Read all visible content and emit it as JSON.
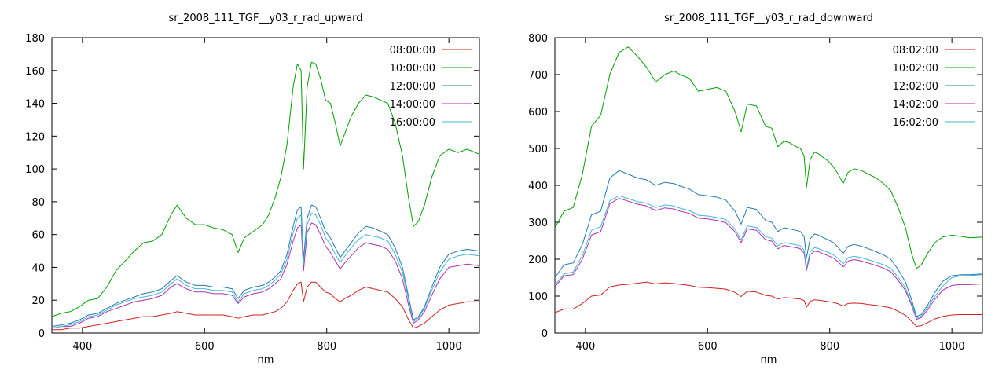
{
  "page": {
    "background": "#ffffff"
  },
  "chart_data": [
    {
      "id": "upward",
      "type": "line",
      "title": "sr_2008_111_TGF__y03_r_rad_upward",
      "xlabel": "nm",
      "ylabel": "",
      "xlim": [
        350,
        1050
      ],
      "ylim": [
        0,
        180
      ],
      "xticks": [
        400,
        600,
        800,
        1000
      ],
      "ytick_step": 20,
      "grid": false,
      "legend_position": "top-right-inside",
      "x": [
        350,
        365,
        380,
        395,
        410,
        425,
        440,
        455,
        470,
        485,
        500,
        515,
        530,
        545,
        555,
        570,
        585,
        600,
        615,
        630,
        645,
        655,
        665,
        680,
        695,
        705,
        715,
        725,
        735,
        745,
        752,
        758,
        762,
        768,
        775,
        782,
        790,
        798,
        806,
        814,
        822,
        830,
        840,
        852,
        864,
        876,
        888,
        900,
        912,
        924,
        934,
        942,
        950,
        960,
        972,
        985,
        1000,
        1015,
        1030,
        1050
      ],
      "series": [
        {
          "name": "08:00:00",
          "color": "#cc2222",
          "values": [
            2,
            2,
            3,
            3,
            4,
            5,
            6,
            7,
            8,
            9,
            10,
            10,
            11,
            12,
            13,
            12,
            11,
            11,
            11,
            11,
            10,
            9,
            10,
            11,
            11,
            12,
            13,
            15,
            19,
            26,
            30,
            31,
            19,
            28,
            31,
            31,
            28,
            25,
            24,
            21,
            19,
            21,
            23,
            26,
            28,
            27,
            26,
            25,
            21,
            16,
            8,
            3,
            4,
            6,
            10,
            14,
            17,
            18,
            19,
            19
          ]
        },
        {
          "name": "10:00:00",
          "color": "#00a000",
          "values": [
            10,
            12,
            13,
            16,
            20,
            21,
            28,
            38,
            44,
            50,
            55,
            56,
            60,
            72,
            78,
            70,
            66,
            66,
            64,
            63,
            60,
            49,
            58,
            62,
            66,
            72,
            82,
            95,
            115,
            150,
            164,
            160,
            100,
            150,
            165,
            164,
            155,
            142,
            140,
            128,
            114,
            122,
            132,
            140,
            145,
            144,
            142,
            140,
            128,
            108,
            82,
            65,
            68,
            78,
            95,
            108,
            112,
            110,
            112,
            109
          ]
        },
        {
          "name": "12:00:00",
          "color": "#2878b0",
          "values": [
            4,
            5,
            6,
            8,
            11,
            12,
            15,
            18,
            20,
            22,
            24,
            25,
            27,
            32,
            35,
            31,
            29,
            29,
            28,
            28,
            27,
            21,
            26,
            28,
            29,
            31,
            34,
            38,
            48,
            65,
            75,
            77,
            45,
            70,
            78,
            77,
            70,
            62,
            58,
            52,
            46,
            50,
            55,
            61,
            65,
            64,
            62,
            60,
            52,
            40,
            22,
            8,
            10,
            16,
            28,
            40,
            48,
            50,
            51,
            50
          ]
        },
        {
          "name": "14:00:00",
          "color": "#b030b0",
          "values": [
            3,
            4,
            4,
            6,
            9,
            10,
            13,
            15,
            17,
            19,
            20,
            21,
            23,
            28,
            30,
            27,
            25,
            25,
            24,
            24,
            23,
            18,
            22,
            24,
            25,
            27,
            30,
            33,
            42,
            56,
            64,
            66,
            38,
            61,
            67,
            66,
            60,
            53,
            49,
            44,
            39,
            43,
            47,
            52,
            55,
            54,
            53,
            51,
            44,
            33,
            17,
            6,
            8,
            13,
            23,
            33,
            40,
            41,
            42,
            41
          ]
        },
        {
          "name": "16:00:00",
          "color": "#40b8d8",
          "values": [
            3,
            4,
            5,
            7,
            10,
            11,
            14,
            17,
            19,
            21,
            22,
            23,
            25,
            30,
            33,
            29,
            27,
            27,
            26,
            26,
            25,
            19,
            24,
            26,
            27,
            29,
            32,
            36,
            45,
            61,
            70,
            72,
            42,
            66,
            73,
            72,
            66,
            58,
            54,
            48,
            43,
            47,
            52,
            57,
            60,
            59,
            58,
            56,
            48,
            37,
            20,
            7,
            9,
            15,
            26,
            37,
            45,
            47,
            48,
            47
          ]
        }
      ]
    },
    {
      "id": "downward",
      "type": "line",
      "title": "sr_2008_111_TGF__y03_r_rad_downward",
      "xlabel": "nm",
      "ylabel": "",
      "xlim": [
        350,
        1050
      ],
      "ylim": [
        0,
        800
      ],
      "xticks": [
        400,
        600,
        800,
        1000
      ],
      "ytick_step": 100,
      "grid": false,
      "legend_position": "top-right-inside",
      "x": [
        350,
        365,
        380,
        395,
        410,
        425,
        440,
        455,
        470,
        485,
        500,
        515,
        530,
        545,
        555,
        570,
        585,
        600,
        615,
        630,
        645,
        655,
        665,
        680,
        695,
        705,
        715,
        725,
        735,
        745,
        752,
        758,
        762,
        768,
        775,
        782,
        790,
        798,
        806,
        814,
        822,
        830,
        840,
        852,
        864,
        876,
        888,
        900,
        912,
        924,
        934,
        942,
        950,
        960,
        972,
        985,
        1000,
        1015,
        1030,
        1050
      ],
      "series": [
        {
          "name": "08:02:00",
          "color": "#cc2222",
          "values": [
            55,
            65,
            65,
            80,
            100,
            103,
            125,
            130,
            132,
            135,
            138,
            133,
            136,
            134,
            132,
            129,
            124,
            123,
            121,
            119,
            110,
            99,
            113,
            111,
            102,
            100,
            92,
            96,
            95,
            93,
            92,
            88,
            70,
            86,
            90,
            89,
            87,
            85,
            83,
            79,
            73,
            80,
            81,
            80,
            77,
            75,
            72,
            68,
            59,
            48,
            32,
            18,
            20,
            28,
            38,
            45,
            49,
            50,
            50,
            50
          ]
        },
        {
          "name": "10:02:00",
          "color": "#00a000",
          "values": [
            285,
            330,
            340,
            430,
            560,
            590,
            700,
            760,
            775,
            750,
            720,
            680,
            700,
            710,
            700,
            690,
            655,
            660,
            665,
            655,
            600,
            545,
            620,
            615,
            560,
            555,
            505,
            520,
            515,
            505,
            500,
            480,
            395,
            470,
            490,
            485,
            475,
            465,
            450,
            430,
            405,
            435,
            445,
            440,
            430,
            420,
            405,
            385,
            340,
            285,
            215,
            175,
            185,
            215,
            245,
            260,
            265,
            262,
            258,
            260
          ]
        },
        {
          "name": "12:02:00",
          "color": "#2878b0",
          "values": [
            150,
            185,
            190,
            240,
            320,
            330,
            420,
            440,
            430,
            420,
            415,
            400,
            408,
            405,
            398,
            390,
            375,
            372,
            368,
            360,
            330,
            295,
            340,
            335,
            305,
            300,
            275,
            285,
            282,
            278,
            275,
            262,
            205,
            255,
            268,
            265,
            258,
            252,
            245,
            232,
            215,
            235,
            240,
            235,
            228,
            220,
            212,
            200,
            172,
            138,
            90,
            45,
            50,
            75,
            110,
            140,
            155,
            158,
            158,
            160
          ]
        },
        {
          "name": "14:02:00",
          "color": "#b030b0",
          "values": [
            125,
            155,
            158,
            200,
            265,
            275,
            350,
            365,
            357,
            349,
            344,
            332,
            339,
            336,
            330,
            324,
            311,
            309,
            305,
            299,
            274,
            245,
            282,
            278,
            253,
            249,
            228,
            237,
            234,
            231,
            228,
            217,
            170,
            212,
            222,
            220,
            214,
            209,
            203,
            193,
            178,
            195,
            199,
            195,
            189,
            183,
            176,
            166,
            143,
            115,
            75,
            37,
            42,
            62,
            91,
            116,
            129,
            131,
            131,
            133
          ]
        },
        {
          "name": "16:02:00",
          "color": "#40b8d8",
          "values": [
            130,
            160,
            165,
            210,
            278,
            288,
            358,
            372,
            364,
            356,
            352,
            340,
            347,
            344,
            338,
            332,
            319,
            317,
            313,
            307,
            281,
            252,
            290,
            286,
            261,
            257,
            236,
            245,
            242,
            239,
            236,
            225,
            177,
            220,
            231,
            229,
            223,
            218,
            212,
            202,
            187,
            204,
            208,
            204,
            198,
            192,
            185,
            175,
            151,
            122,
            80,
            40,
            46,
            68,
            99,
            127,
            150,
            155,
            156,
            158
          ]
        }
      ]
    }
  ]
}
